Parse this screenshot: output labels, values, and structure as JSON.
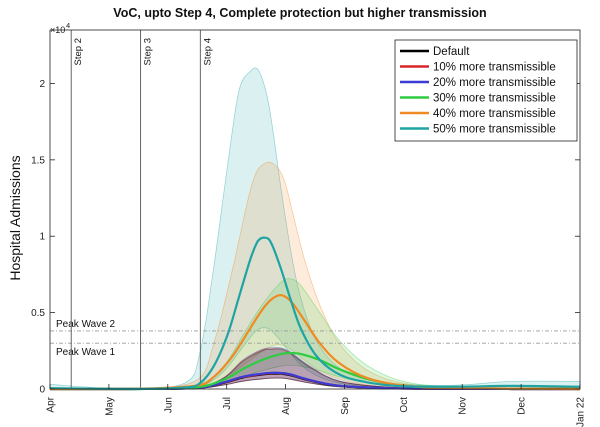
{
  "chart_data": {
    "type": "line",
    "title": "VoC, upto Step 4, Complete protection but higher transmission",
    "ylabel": "Hospital Admissions",
    "xlabel": "",
    "y_exponent_label": "×10",
    "y_exponent_power": "4",
    "ylim": [
      0,
      23500
    ],
    "yticks": [
      0,
      5000,
      10000,
      15000,
      20000
    ],
    "ytick_labels": [
      "0",
      "0.5",
      "1",
      "1.5",
      "2"
    ],
    "x_tick_labels": [
      "Apr",
      "May",
      "Jun",
      "Jul",
      "Aug",
      "Sep",
      "Oct",
      "Nov",
      "Dec",
      "Jan 22"
    ],
    "x_range_days": [
      0,
      275
    ],
    "vertical_lines": [
      {
        "label": "Step 2",
        "day": 11,
        "label_text": "Step 2"
      },
      {
        "label": "Step 3",
        "day": 47,
        "label_text": "Step 3"
      },
      {
        "label": "Step 4",
        "day": 78,
        "label_text": "Step 4"
      }
    ],
    "reference_lines": [
      {
        "label": "Peak Wave 2",
        "value": 3800
      },
      {
        "label": "Peak Wave 1",
        "value": 3000
      }
    ],
    "legend_position": "top-right",
    "series": [
      {
        "name": "Default",
        "color": "#000000",
        "days": [
          0,
          40,
          75,
          90,
          100,
          110,
          115,
          120,
          125,
          135,
          150,
          175,
          210,
          275
        ],
        "mean": [
          0,
          0,
          50,
          400,
          750,
          950,
          1000,
          1000,
          900,
          550,
          200,
          50,
          10,
          0
        ],
        "lower": [
          0,
          0,
          30,
          250,
          500,
          650,
          700,
          700,
          620,
          380,
          140,
          35,
          5,
          0
        ],
        "upper": [
          0,
          0,
          80,
          700,
          1800,
          2500,
          2600,
          2600,
          2300,
          1400,
          500,
          120,
          30,
          0
        ]
      },
      {
        "name": "10% more transmissible",
        "color": "#d62728",
        "days": [
          0,
          40,
          75,
          90,
          100,
          110,
          115,
          120,
          125,
          135,
          150,
          175,
          210,
          275
        ],
        "mean": [
          0,
          0,
          55,
          420,
          780,
          980,
          1040,
          1030,
          930,
          570,
          210,
          55,
          10,
          0
        ],
        "lower": [
          0,
          0,
          30,
          260,
          520,
          670,
          720,
          720,
          640,
          390,
          145,
          35,
          5,
          0
        ],
        "upper": [
          0,
          0,
          90,
          720,
          1850,
          2550,
          2650,
          2650,
          2350,
          1450,
          520,
          125,
          30,
          0
        ]
      },
      {
        "name": "20% more transmissible",
        "color": "#3b3bd6",
        "days": [
          0,
          40,
          75,
          90,
          100,
          110,
          115,
          120,
          125,
          135,
          150,
          175,
          210,
          275
        ],
        "mean": [
          0,
          0,
          60,
          430,
          800,
          1000,
          1060,
          1050,
          950,
          580,
          215,
          55,
          10,
          0
        ],
        "lower": [
          0,
          0,
          30,
          270,
          530,
          680,
          730,
          730,
          650,
          400,
          150,
          35,
          5,
          0
        ],
        "upper": [
          0,
          0,
          90,
          740,
          1900,
          2600,
          2700,
          2700,
          2400,
          1480,
          530,
          130,
          30,
          0
        ]
      },
      {
        "name": "30% more transmissible",
        "color": "#2ecc40",
        "days": [
          0,
          40,
          75,
          90,
          100,
          110,
          120,
          125,
          130,
          140,
          150,
          165,
          185,
          215,
          275
        ],
        "mean": [
          0,
          0,
          100,
          600,
          1300,
          1900,
          2300,
          2350,
          2300,
          1900,
          1300,
          650,
          200,
          50,
          0
        ],
        "lower": [
          0,
          0,
          50,
          350,
          800,
          1200,
          1500,
          1550,
          1500,
          1200,
          800,
          380,
          110,
          25,
          0
        ],
        "upper": [
          0,
          0,
          200,
          1500,
          3500,
          5500,
          7000,
          7200,
          6800,
          5000,
          3200,
          1500,
          450,
          100,
          0
        ]
      },
      {
        "name": "40% more transmissible",
        "color": "#f08a24",
        "days": [
          0,
          40,
          75,
          85,
          95,
          105,
          112,
          118,
          122,
          126,
          132,
          140,
          150,
          165,
          185,
          215,
          275
        ],
        "mean": [
          0,
          0,
          200,
          800,
          2200,
          4200,
          5500,
          6100,
          6050,
          5600,
          4500,
          3000,
          1700,
          700,
          200,
          50,
          0
        ],
        "lower": [
          0,
          0,
          100,
          400,
          1100,
          2000,
          2600,
          2900,
          2800,
          2500,
          1900,
          1200,
          650,
          250,
          70,
          20,
          0
        ],
        "upper": [
          0,
          0,
          500,
          3000,
          8000,
          13500,
          14800,
          14500,
          13500,
          11500,
          8500,
          5500,
          3000,
          1200,
          350,
          100,
          0
        ]
      },
      {
        "name": "50% more transmissible",
        "color": "#1fa3a3",
        "days": [
          0,
          40,
          70,
          78,
          85,
          92,
          98,
          104,
          108,
          112,
          115,
          120,
          125,
          130,
          138,
          148,
          160,
          180,
          210,
          240,
          275
        ],
        "mean": [
          50,
          0,
          100,
          400,
          1500,
          3500,
          6000,
          8500,
          9700,
          9900,
          9500,
          7800,
          5800,
          4000,
          2200,
          1100,
          550,
          200,
          150,
          200,
          150
        ],
        "lower": [
          20,
          0,
          50,
          150,
          600,
          1400,
          2400,
          3400,
          3900,
          4000,
          3800,
          3100,
          2300,
          1600,
          900,
          450,
          220,
          80,
          60,
          80,
          60
        ],
        "upper": [
          300,
          0,
          400,
          2500,
          8000,
          14500,
          19500,
          20800,
          20900,
          19500,
          17500,
          13000,
          9000,
          6000,
          3200,
          1600,
          800,
          350,
          250,
          500,
          500
        ]
      }
    ]
  }
}
